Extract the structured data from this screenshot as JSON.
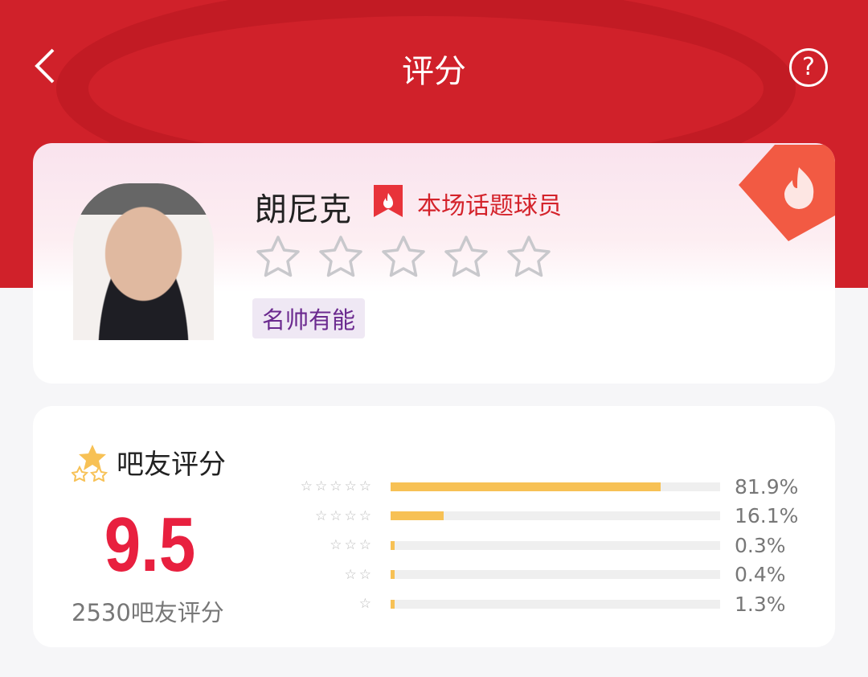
{
  "header": {
    "title": "评分",
    "back_icon": "chevron-left-icon",
    "help_icon": "question-circle-icon",
    "help_glyph": "?"
  },
  "player": {
    "name": "朗尼克",
    "badge": "本场话题球员",
    "rating_stars": 5,
    "tag": "名帅有能"
  },
  "fan_rating": {
    "title": "吧友评分",
    "score": "9.5",
    "count_label": "2530吧友评分",
    "distribution": [
      {
        "stars": "☆☆☆☆☆",
        "percent": 81.9,
        "label": "81.9%"
      },
      {
        "stars": "☆☆☆☆",
        "percent": 16.1,
        "label": "16.1%"
      },
      {
        "stars": "☆☆☆",
        "percent": 0.3,
        "label": "0.3%"
      },
      {
        "stars": "☆☆",
        "percent": 0.4,
        "label": "0.4%"
      },
      {
        "stars": "☆",
        "percent": 1.3,
        "label": "1.3%"
      }
    ]
  },
  "colors": {
    "header": "#d0212a",
    "score": "#e8203f",
    "bar": "#f7c155",
    "topic": "#d4232b"
  }
}
